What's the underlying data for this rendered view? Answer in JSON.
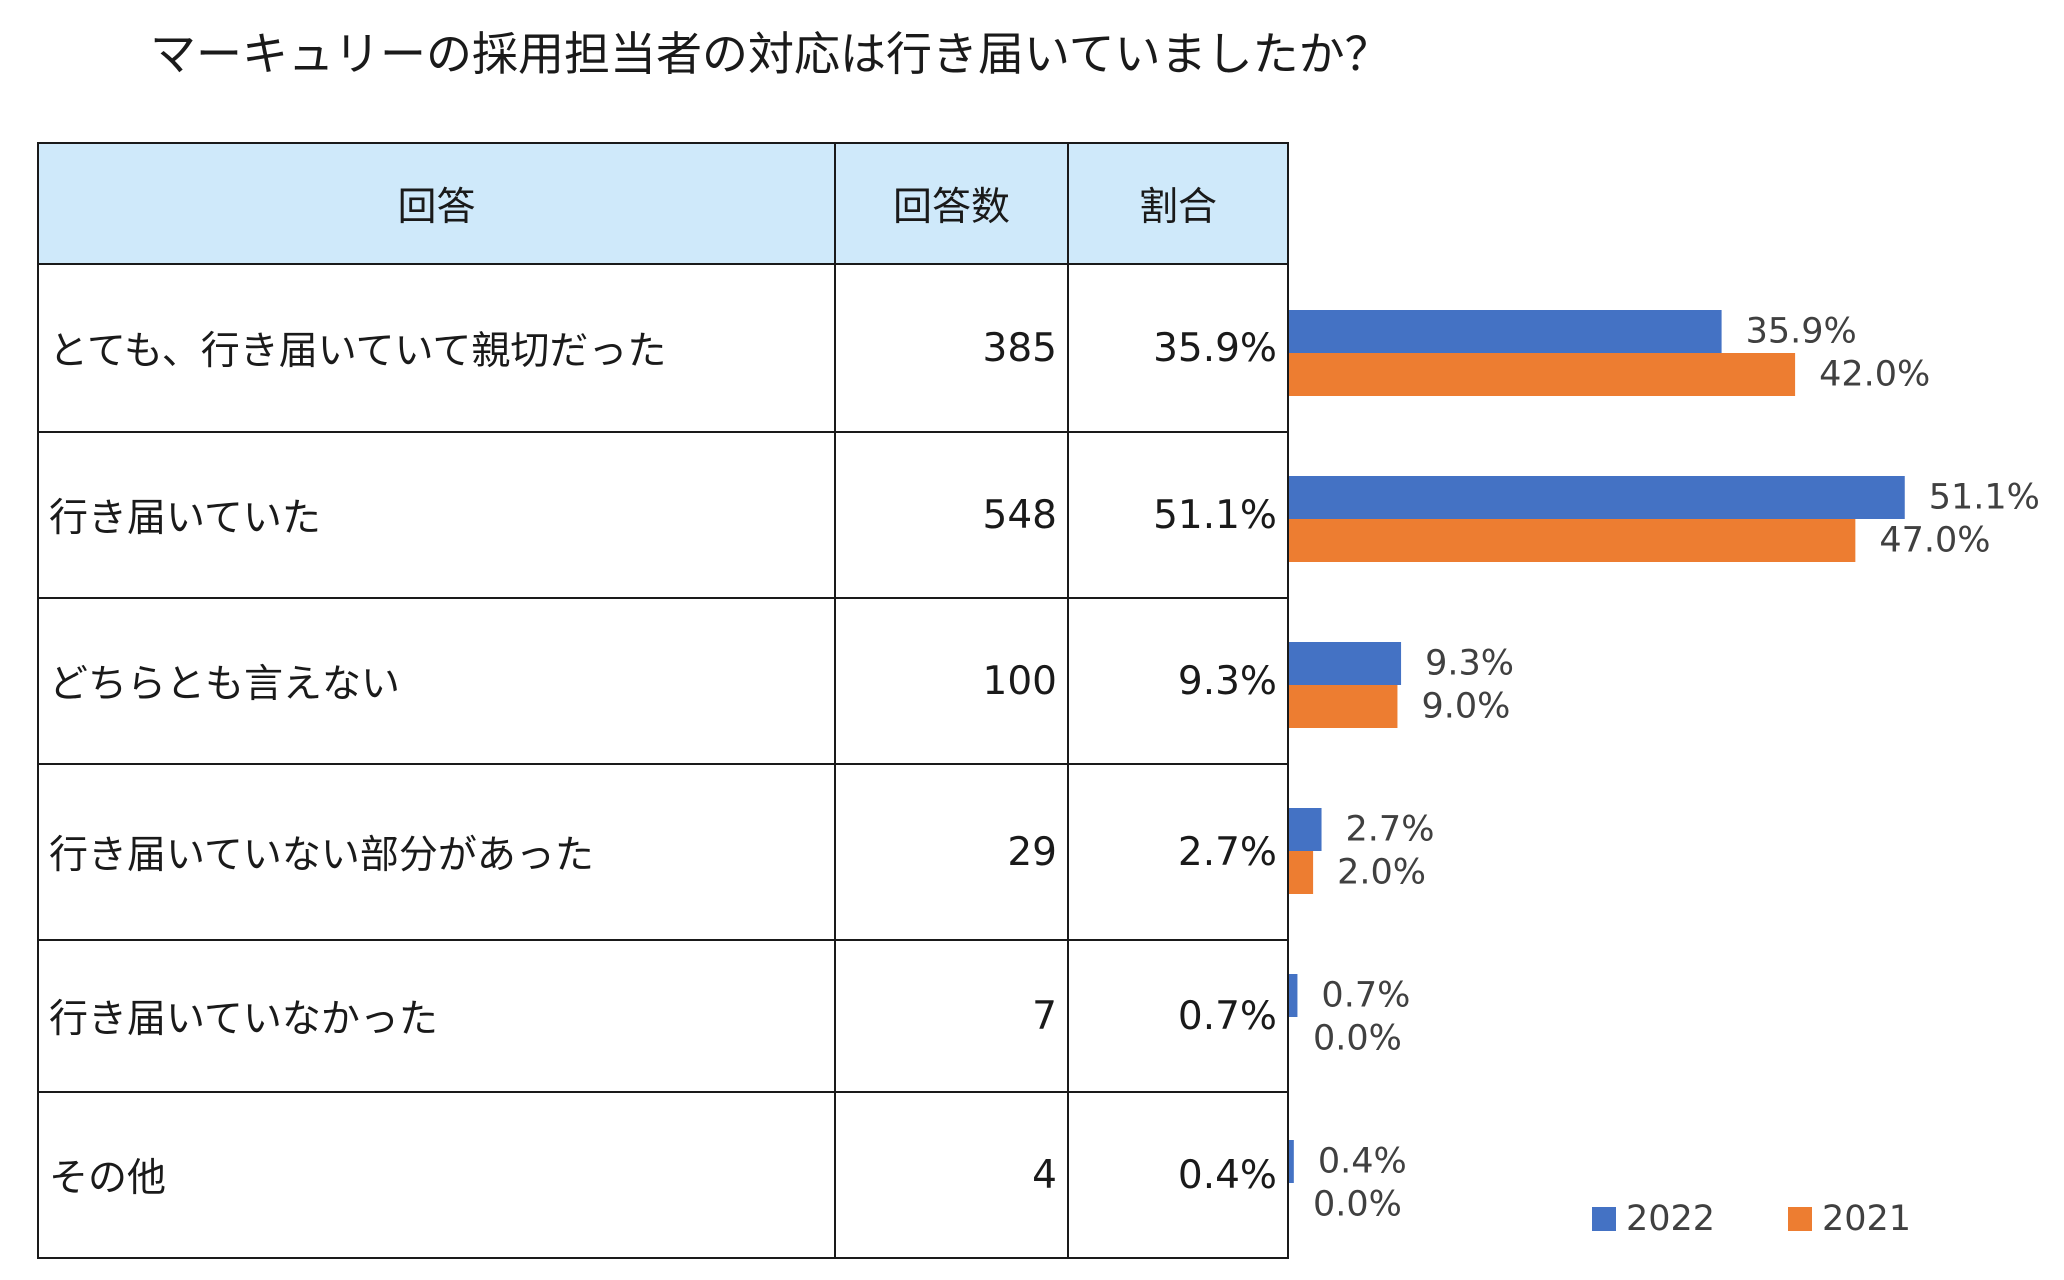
{
  "title": "マーキュリーの採用担当者の対応は行き届いていましたか？",
  "table": {
    "headers": [
      "回答",
      "回答数",
      "割合"
    ],
    "rows": [
      {
        "answer": "とても、行き届いていて親切だった",
        "count": "385",
        "ratio": "35.9%"
      },
      {
        "answer": "行き届いていた",
        "count": "548",
        "ratio": "51.1%"
      },
      {
        "answer": "どちらとも言えない",
        "count": "100",
        "ratio": "9.3%"
      },
      {
        "answer": "行き届いていない部分があった",
        "count": "29",
        "ratio": "2.7%"
      },
      {
        "answer": "行き届いていなかった",
        "count": "7",
        "ratio": "0.7%"
      },
      {
        "answer": "その他",
        "count": "4",
        "ratio": "0.4%"
      }
    ]
  },
  "chart_data": {
    "type": "bar",
    "orientation": "horizontal",
    "categories": [
      "とても、行き届いていて親切だった",
      "行き届いていた",
      "どちらとも言えない",
      "行き届いていない部分があった",
      "行き届いていなかった",
      "その他"
    ],
    "series": [
      {
        "name": "2022",
        "color": "#4472c4",
        "values": [
          35.9,
          51.1,
          9.3,
          2.7,
          0.7,
          0.4
        ],
        "labels": [
          "35.9%",
          "51.1%",
          "9.3%",
          "2.7%",
          "0.7%",
          "0.4%"
        ]
      },
      {
        "name": "2021",
        "color": "#ed7d31",
        "values": [
          42.0,
          47.0,
          9.0,
          2.0,
          0.0,
          0.0
        ],
        "labels": [
          "42.0%",
          "47.0%",
          "9.0%",
          "2.0%",
          "0.0%",
          "0.0%"
        ]
      }
    ],
    "legend": "bottom-right",
    "xlim": [
      0,
      55
    ]
  }
}
